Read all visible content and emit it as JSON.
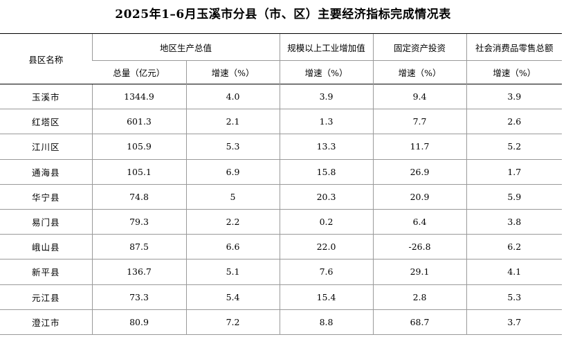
{
  "title": "2025年1–6月玉溪市分县（市、区）主要经济指标完成情况表",
  "headers": {
    "county": "县区名称",
    "gdp": "地区生产总值",
    "industry": "规模以上工业增加值",
    "investment": "固定资产投资",
    "retail": "社会消费品零售总额",
    "gdp_total": "总量（亿元）",
    "growth": "增速（%）"
  },
  "rows": [
    {
      "name": "玉溪市",
      "gdp_total": "1344.9",
      "gdp_growth": "4.0",
      "industry_growth": "3.9",
      "investment_growth": "9.4",
      "retail_growth": "3.9"
    },
    {
      "name": "红塔区",
      "gdp_total": "601.3",
      "gdp_growth": "2.1",
      "industry_growth": "1.3",
      "investment_growth": "7.7",
      "retail_growth": "2.6"
    },
    {
      "name": "江川区",
      "gdp_total": "105.9",
      "gdp_growth": "5.3",
      "industry_growth": "13.3",
      "investment_growth": "11.7",
      "retail_growth": "5.2"
    },
    {
      "name": "通海县",
      "gdp_total": "105.1",
      "gdp_growth": "6.9",
      "industry_growth": "15.8",
      "investment_growth": "26.9",
      "retail_growth": "1.7"
    },
    {
      "name": "华宁县",
      "gdp_total": "74.8",
      "gdp_growth": "5",
      "industry_growth": "20.3",
      "investment_growth": "20.9",
      "retail_growth": "5.9"
    },
    {
      "name": "易门县",
      "gdp_total": "79.3",
      "gdp_growth": "2.2",
      "industry_growth": "0.2",
      "investment_growth": "6.4",
      "retail_growth": "3.8"
    },
    {
      "name": "峨山县",
      "gdp_total": "87.5",
      "gdp_growth": "6.6",
      "industry_growth": "22.0",
      "investment_growth": "-26.8",
      "retail_growth": "6.2"
    },
    {
      "name": "新平县",
      "gdp_total": "136.7",
      "gdp_growth": "5.1",
      "industry_growth": "7.6",
      "investment_growth": "29.1",
      "retail_growth": "4.1"
    },
    {
      "name": "元江县",
      "gdp_total": "73.3",
      "gdp_growth": "5.4",
      "industry_growth": "15.4",
      "investment_growth": "2.8",
      "retail_growth": "5.3"
    },
    {
      "name": "澄江市",
      "gdp_total": "80.9",
      "gdp_growth": "7.2",
      "industry_growth": "8.8",
      "investment_growth": "68.7",
      "retail_growth": "3.7"
    }
  ]
}
